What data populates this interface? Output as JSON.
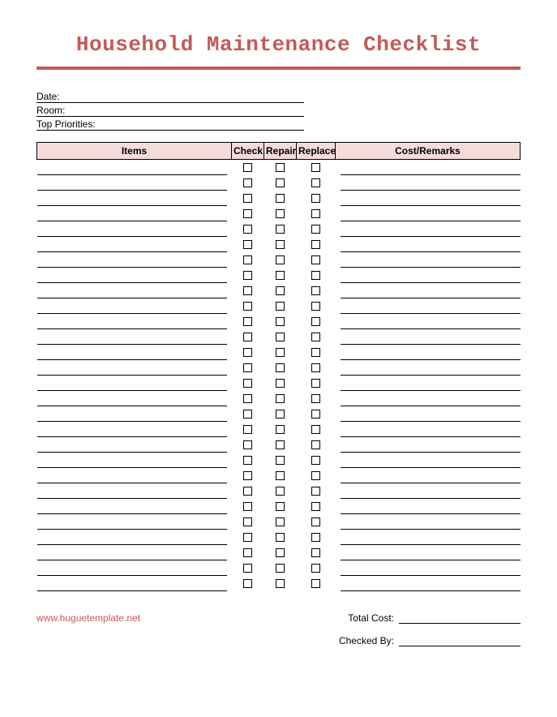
{
  "title": {
    "text": "Household Maintenance Checklist",
    "color": "#c35a57"
  },
  "rule_color": "#c35a57",
  "info": {
    "date_label": "Date:",
    "room_label": "Room:",
    "priorities_label": "Top Priorities:"
  },
  "table": {
    "header_bg": "#f3dcdb",
    "columns": {
      "items": "Items",
      "check": "Check",
      "repair": "Repair",
      "replace": "Replace",
      "cost": "Cost/Remarks"
    },
    "row_count": 28
  },
  "footer": {
    "website_text": "www.huguetemplate.net",
    "website_color": "#c35a57",
    "total_cost_label": "Total Cost:",
    "checked_by_label": "Checked By:"
  }
}
